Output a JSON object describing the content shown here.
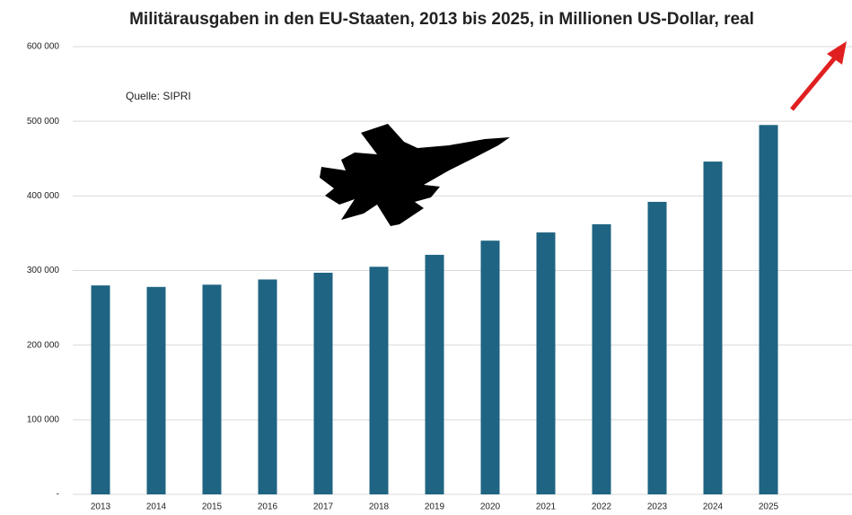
{
  "chart_data": {
    "type": "bar",
    "title": "Militärausgaben in den EU-Staaten, 2013 bis 2025, in Millionen US-Dollar, real",
    "annotation": "Quelle: SIPRI",
    "categories": [
      "2013",
      "2014",
      "2015",
      "2016",
      "2017",
      "2018",
      "2019",
      "2020",
      "2021",
      "2022",
      "2023",
      "2024",
      "2025"
    ],
    "values": [
      280000,
      278000,
      281000,
      288000,
      297000,
      305000,
      321000,
      340000,
      351000,
      362000,
      392000,
      446000,
      495000
    ],
    "color": "#1f6482",
    "ylim": [
      0,
      600000
    ],
    "yticks": [
      {
        "value": 0,
        "label": "-"
      },
      {
        "value": 100000,
        "label": "100 000"
      },
      {
        "value": 200000,
        "label": "200 000"
      },
      {
        "value": 300000,
        "label": "300 000"
      },
      {
        "value": 400000,
        "label": "400 000"
      },
      {
        "value": 500000,
        "label": "500 000"
      },
      {
        "value": 600000,
        "label": "600 000"
      }
    ],
    "grid": true
  }
}
